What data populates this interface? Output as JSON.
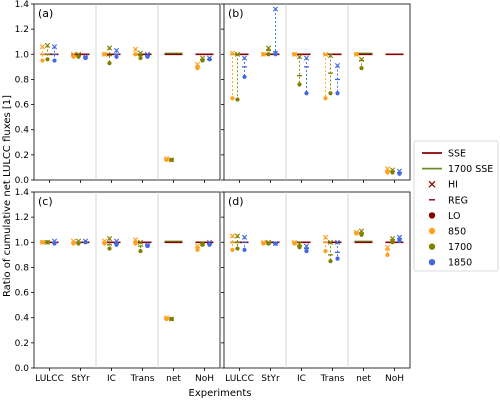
{
  "chart_data": {
    "type": "scatter",
    "ylabel": "Ratio of cumulative net LULCC fluxes [1]",
    "xlabel": "Experiments",
    "categories": [
      "LULCC",
      "StYr",
      "IC",
      "Trans",
      "net",
      "NoH"
    ],
    "yticks": [
      "0.0",
      "0.2",
      "0.4",
      "0.6",
      "0.8",
      "1.0",
      "1.2",
      "1.4"
    ],
    "ylim": [
      0,
      1.4
    ],
    "legend": {
      "placement": "right",
      "entries": [
        {
          "label": "SSE",
          "kind": "line",
          "color": "#8b0000"
        },
        {
          "label": "1700 SSE",
          "kind": "line",
          "color": "#6b8e23"
        },
        {
          "label": "HI",
          "kind": "x",
          "color": "#8b0000"
        },
        {
          "label": "REG",
          "kind": "dash",
          "color": "#8b0000"
        },
        {
          "label": "LO",
          "kind": "dot",
          "color": "#8b0000"
        },
        {
          "label": "850",
          "kind": "dot",
          "color": "#ff9f1c"
        },
        {
          "label": "1700",
          "kind": "dot",
          "color": "#808000"
        },
        {
          "label": "1850",
          "kind": "dot",
          "color": "#4169e1"
        }
      ]
    },
    "colors": {
      "850": "#ff9f1c",
      "1700": "#808000",
      "1850": "#4169e1",
      "SSE": "#8b0000",
      "SSE1700": "#6b8e23"
    },
    "panels": [
      {
        "tag": "(a)",
        "groups": [
          {
            "x": 0,
            "series": {
              "850": [
                1.06,
                0.95,
                1.0
              ],
              "1700": [
                1.07,
                0.96,
                1.0
              ],
              "1850": [
                1.06,
                0.95,
                1.0
              ]
            },
            "sse": 1.0
          },
          {
            "x": 1,
            "series": {
              "850": [
                1.0,
                0.98,
                0.99
              ],
              "1700": [
                1.0,
                0.98,
                0.99
              ],
              "1850": [
                0.98,
                0.97,
                0.98
              ]
            },
            "sse": 1.0
          },
          {
            "x": 2,
            "series": {
              "850": [
                1.0,
                1.0,
                1.0
              ],
              "1700": [
                1.05,
                0.93,
                0.99
              ],
              "1850": [
                1.03,
                0.98,
                1.0
              ]
            },
            "sse": 1.0
          },
          {
            "x": 3,
            "series": {
              "850": [
                1.04,
                1.0,
                1.0
              ],
              "1700": [
                1.01,
                0.97,
                0.99
              ],
              "1850": [
                1.0,
                0.98,
                0.99
              ]
            },
            "sse": 1.0
          },
          {
            "x": 4,
            "series": {
              "850": [
                0.17,
                0.16,
                0.17
              ],
              "1700": [
                0.16,
                0.16,
                0.16
              ],
              "1850": []
            },
            "sse": 1.0
          },
          {
            "x": 5,
            "series": {
              "850": [
                0.92,
                0.89,
                0.9
              ],
              "1700": [
                0.97,
                0.95,
                0.96
              ],
              "1850": [
                0.97,
                0.96,
                0.96
              ]
            },
            "sse": 1.0
          }
        ]
      },
      {
        "tag": "(b)",
        "groups": [
          {
            "x": 0,
            "series": {
              "850": [
                1.01,
                0.65,
                1.0
              ],
              "1700": [
                1.0,
                0.64,
                1.0
              ],
              "1850": [
                0.97,
                0.82,
                0.9
              ]
            },
            "sse": 1.0
          },
          {
            "x": 1,
            "series": {
              "850": [
                1.0,
                1.0,
                1.0
              ],
              "1700": [
                1.05,
                1.0,
                1.03
              ],
              "1850": [
                1.36,
                1.0,
                1.02
              ]
            },
            "sse": 1.0
          },
          {
            "x": 2,
            "series": {
              "850": [
                1.0,
                1.0,
                1.0
              ],
              "1700": [
                0.98,
                0.76,
                0.83
              ],
              "1850": [
                0.97,
                0.69,
                0.9
              ]
            },
            "sse": 1.0
          },
          {
            "x": 3,
            "series": {
              "850": [
                1.0,
                0.65,
                1.0
              ],
              "1700": [
                0.99,
                0.69,
                0.85
              ],
              "1850": [
                0.91,
                0.69,
                0.8
              ]
            },
            "sse": 1.0
          },
          {
            "x": 4,
            "series": {
              "850": [
                1.0,
                1.0,
                1.0
              ],
              "1700": [
                0.96,
                0.89,
                0.95
              ],
              "1850": []
            },
            "sse": 1.0
          },
          {
            "x": 5,
            "series": {
              "850": [
                0.09,
                0.06,
                0.07
              ],
              "1700": [
                0.08,
                0.06,
                0.07
              ],
              "1850": [
                0.07,
                0.05,
                0.06
              ]
            },
            "sse": 1.0
          }
        ]
      },
      {
        "tag": "(c)",
        "groups": [
          {
            "x": 0,
            "series": {
              "850": [
                1.0,
                1.0,
                1.0
              ],
              "1700": [
                1.0,
                1.0,
                1.0
              ],
              "1850": [
                1.01,
                0.99,
                1.0
              ]
            },
            "sse": 1.0
          },
          {
            "x": 1,
            "series": {
              "850": [
                1.01,
                0.99,
                1.0
              ],
              "1700": [
                1.01,
                0.99,
                1.0
              ],
              "1850": [
                1.01,
                1.0,
                1.0
              ]
            },
            "sse": 1.0
          },
          {
            "x": 2,
            "series": {
              "850": [
                1.01,
                0.99,
                1.0
              ],
              "1700": [
                1.03,
                0.95,
                0.98
              ],
              "1850": [
                1.01,
                0.98,
                0.99
              ]
            },
            "sse": 1.0
          },
          {
            "x": 3,
            "series": {
              "850": [
                1.02,
                0.99,
                1.0
              ],
              "1700": [
                1.0,
                0.93,
                0.97
              ],
              "1850": [
                0.98,
                0.97,
                0.98
              ]
            },
            "sse": 1.0
          },
          {
            "x": 4,
            "series": {
              "850": [
                0.4,
                0.39,
                0.4
              ],
              "1700": [
                0.39,
                0.39,
                0.39
              ],
              "1850": []
            },
            "sse": 1.0
          },
          {
            "x": 5,
            "series": {
              "850": [
                0.97,
                0.94,
                0.96
              ],
              "1700": [
                0.99,
                0.98,
                0.99
              ],
              "1850": [
                1.0,
                0.98,
                0.99
              ]
            },
            "sse": 1.0
          }
        ]
      },
      {
        "tag": "(d)",
        "groups": [
          {
            "x": 0,
            "series": {
              "850": [
                1.05,
                0.94,
                1.0
              ],
              "1700": [
                1.05,
                0.95,
                1.0
              ],
              "1850": [
                1.04,
                0.94,
                1.0
              ]
            },
            "sse": 1.0
          },
          {
            "x": 1,
            "series": {
              "850": [
                1.0,
                0.99,
                1.0
              ],
              "1700": [
                1.0,
                0.99,
                1.0
              ],
              "1850": [
                0.99,
                0.99,
                0.99
              ]
            },
            "sse": 1.0
          },
          {
            "x": 2,
            "series": {
              "850": [
                1.0,
                0.99,
                1.0
              ],
              "1700": [
                0.99,
                0.96,
                0.97
              ],
              "1850": [
                0.97,
                0.93,
                0.95
              ]
            },
            "sse": 1.0
          },
          {
            "x": 3,
            "series": {
              "850": [
                1.04,
                0.93,
                1.0
              ],
              "1700": [
                1.0,
                0.85,
                0.9
              ],
              "1850": [
                1.0,
                0.87,
                0.92
              ]
            },
            "sse": 1.0
          },
          {
            "x": 4,
            "series": {
              "850": [
                1.08,
                1.07,
                1.08
              ],
              "1700": [
                1.09,
                1.06,
                1.07
              ],
              "1850": []
            },
            "sse": 1.0
          },
          {
            "x": 5,
            "series": {
              "850": [
                0.96,
                0.9,
                0.94
              ],
              "1700": [
                1.03,
                1.0,
                1.02
              ],
              "1850": [
                1.04,
                1.01,
                1.03
              ]
            },
            "sse": 1.0
          }
        ]
      }
    ]
  }
}
